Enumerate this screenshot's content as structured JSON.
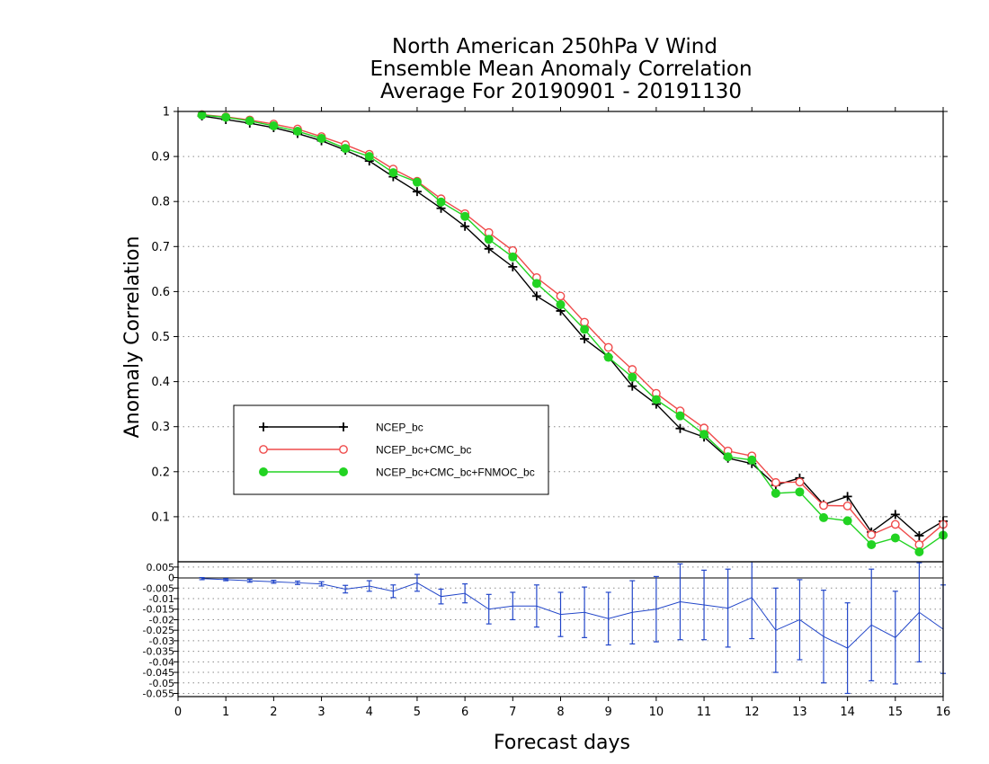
{
  "chart_data": [
    {
      "type": "line",
      "title": [
        "North American 250hPa V Wind",
        "Ensemble Mean Anomaly Correlation",
        "Average For 20190901 - 20191130"
      ],
      "xlabel": "",
      "ylabel": "Anomaly Correlation",
      "xlim": [
        0,
        16
      ],
      "ylim": [
        0,
        1
      ],
      "yticks": [
        "0.1",
        "0.2",
        "0.3",
        "0.4",
        "0.5",
        "0.6",
        "0.7",
        "0.8",
        "0.9",
        "1"
      ],
      "grid": "horizontal dotted",
      "legend_position": "lower-left",
      "x": [
        0.5,
        1,
        1.5,
        2,
        2.5,
        3,
        3.5,
        4,
        4.5,
        5,
        5.5,
        6,
        6.5,
        7,
        7.5,
        8,
        8.5,
        9,
        9.5,
        10,
        10.5,
        11,
        11.5,
        12,
        12.5,
        13,
        13.5,
        14,
        14.5,
        15,
        15.5,
        16
      ],
      "series": [
        {
          "name": "NCEP_bc",
          "color": "#000000",
          "marker": "plus",
          "values": [
            0.99,
            0.982,
            0.974,
            0.964,
            0.951,
            0.935,
            0.914,
            0.89,
            0.855,
            0.822,
            0.785,
            0.745,
            0.695,
            0.655,
            0.59,
            0.557,
            0.495,
            0.455,
            0.39,
            0.35,
            0.296,
            0.277,
            0.23,
            0.218,
            0.17,
            0.186,
            0.127,
            0.145,
            0.066,
            0.105,
            0.058,
            0.09
          ]
        },
        {
          "name": "NCEP_bc+CMC_bc",
          "color": "#ef4b4b",
          "marker": "open-circle",
          "values": [
            0.993,
            0.988,
            0.981,
            0.972,
            0.961,
            0.944,
            0.926,
            0.905,
            0.872,
            0.845,
            0.806,
            0.773,
            0.731,
            0.691,
            0.631,
            0.59,
            0.532,
            0.476,
            0.427,
            0.374,
            0.335,
            0.297,
            0.246,
            0.235,
            0.176,
            0.177,
            0.125,
            0.124,
            0.06,
            0.083,
            0.038,
            0.083
          ]
        },
        {
          "name": "NCEP_bc+CMC_bc+FNMOC_bc",
          "color": "#22d322",
          "marker": "filled-circle",
          "values": [
            0.992,
            0.987,
            0.979,
            0.968,
            0.956,
            0.94,
            0.918,
            0.9,
            0.864,
            0.843,
            0.799,
            0.767,
            0.716,
            0.677,
            0.618,
            0.571,
            0.516,
            0.454,
            0.41,
            0.36,
            0.324,
            0.283,
            0.233,
            0.226,
            0.152,
            0.155,
            0.098,
            0.091,
            0.038,
            0.053,
            0.022,
            0.059
          ]
        }
      ]
    },
    {
      "type": "line",
      "title": "",
      "xlabel": "Forecast days",
      "ylabel": "",
      "xlim": [
        0,
        16
      ],
      "ylim": [
        -0.0565,
        0.0075
      ],
      "xticks": [
        "0",
        "1",
        "2",
        "3",
        "4",
        "5",
        "6",
        "7",
        "8",
        "9",
        "10",
        "11",
        "12",
        "13",
        "14",
        "15",
        "16"
      ],
      "yticks": [
        "0.005",
        "0",
        "-0.005",
        "-0.01",
        "-0.015",
        "-0.02",
        "-0.025",
        "-0.03",
        "-0.035",
        "-0.04",
        "-0.045",
        "-0.05",
        "-0.055"
      ],
      "grid": "horizontal dotted",
      "series": [
        {
          "name": "",
          "color": "#2246c9",
          "marker": "error-bar",
          "x": [
            0.5,
            1,
            1.5,
            2,
            2.5,
            3,
            3.5,
            4,
            4.5,
            5,
            5.5,
            6,
            6.5,
            7,
            7.5,
            8,
            8.5,
            9,
            9.5,
            10,
            10.5,
            11,
            11.5,
            12,
            12.5,
            13,
            13.5,
            14,
            14.5,
            15,
            15.5,
            16
          ],
          "values": [
            -0.0005,
            -0.001,
            -0.0015,
            -0.002,
            -0.0025,
            -0.003,
            -0.0055,
            -0.004,
            -0.0065,
            -0.0025,
            -0.009,
            -0.0075,
            -0.015,
            -0.0135,
            -0.0135,
            -0.0175,
            -0.0165,
            -0.0195,
            -0.0165,
            -0.015,
            -0.0115,
            -0.013,
            -0.0145,
            -0.0095,
            -0.025,
            -0.02,
            -0.028,
            -0.0335,
            -0.0225,
            -0.0285,
            -0.0165,
            -0.0245
          ],
          "error": [
            0.0005,
            0.0005,
            0.0007,
            0.0007,
            0.0008,
            0.001,
            0.0018,
            0.0025,
            0.003,
            0.004,
            0.0035,
            0.0045,
            0.007,
            0.0065,
            0.01,
            0.0105,
            0.012,
            0.0125,
            0.015,
            0.0155,
            0.018,
            0.0165,
            0.0185,
            0.0195,
            0.02,
            0.019,
            0.022,
            0.0215,
            0.0265,
            0.022,
            0.0235,
            0.021
          ]
        }
      ]
    }
  ]
}
